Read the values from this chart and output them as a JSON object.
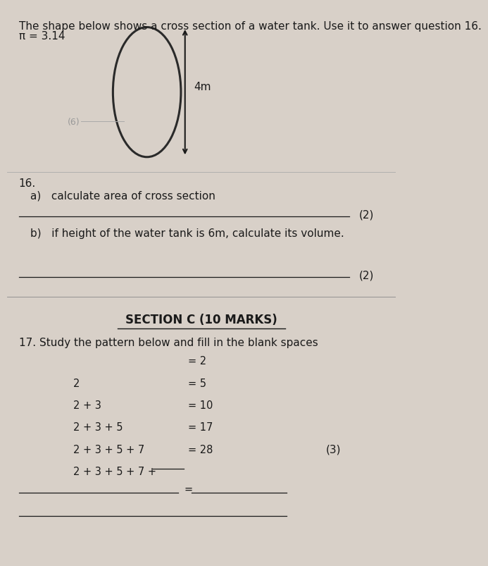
{
  "bg_color": "#d8d0c8",
  "text_color": "#1a1a1a",
  "title_line1": "The shape below shows a cross section of a water tank. Use it to answer question 16.",
  "title_line2": "π = 3.14",
  "arrow_label": "4m",
  "q16_label": "16.",
  "q16a": "a)   calculate area of cross section",
  "q16a_marks": "(2)",
  "q16b": "b)   if height of the water tank is 6m, calculate its volume.",
  "q16b_marks": "(2)",
  "section_c": "SECTION C (10 MARKS)",
  "q17_intro": "17. Study the pattern below and fill in the blank spaces",
  "pattern_left": [
    "",
    "2",
    "2 + 3",
    "2 + 3 + 5",
    "2 + 3 + 5 + 7",
    "2 + 3 + 5 + 7 + "
  ],
  "pattern_right": [
    "= 2",
    "= 5",
    "= 10",
    "= 17",
    "= 28",
    ""
  ],
  "q17_marks": "(3)"
}
